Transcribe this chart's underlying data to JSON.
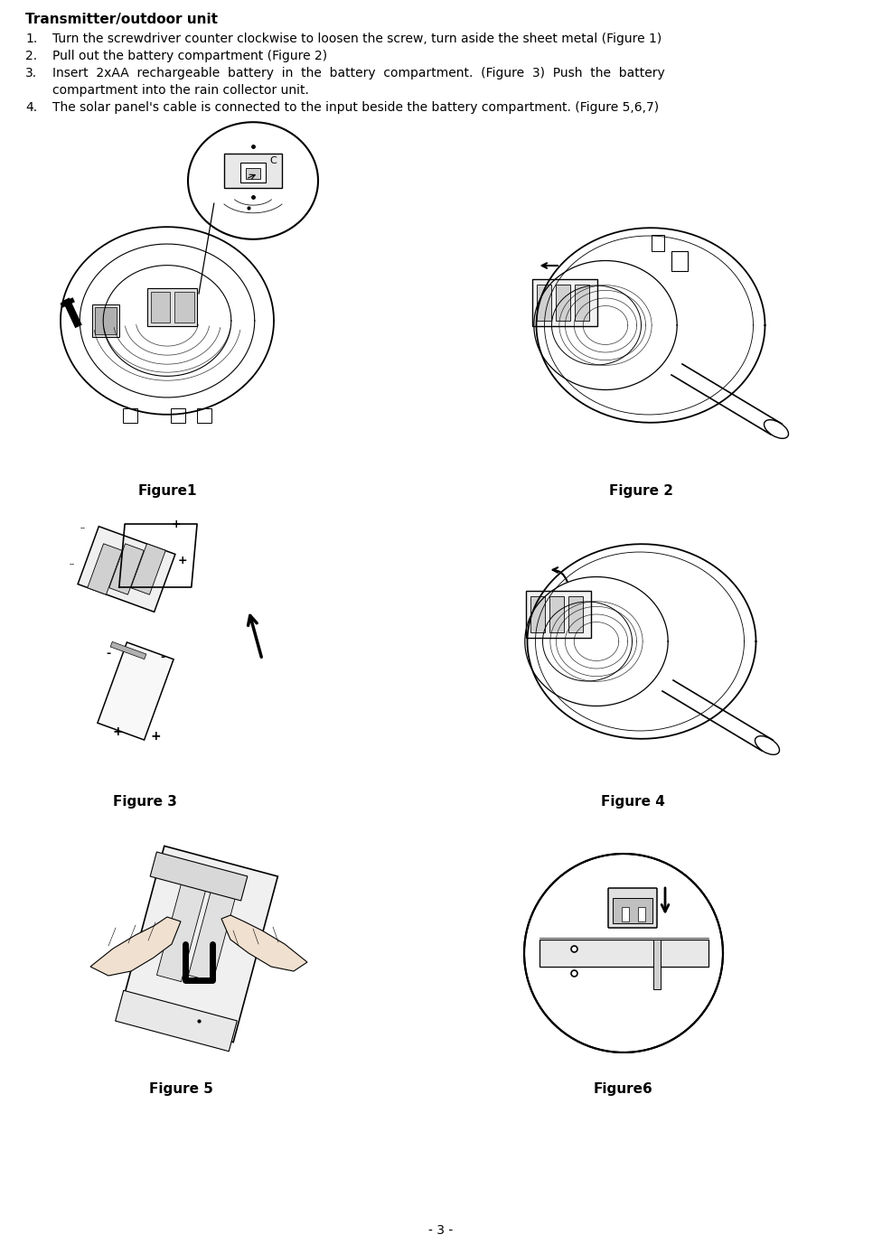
{
  "title": "Transmitter/outdoor unit",
  "line1": "Turn the screwdriver counter clockwise to loosen the screw, turn aside the sheet metal (Figure 1)",
  "line2": "Pull out the battery compartment (Figure 2)",
  "line3a": "Insert  2xAA  rechargeable  battery  in  the  battery  compartment.  (Figure  3)  Push  the  battery",
  "line3b": "compartment into the rain collector unit.",
  "line4": "The solar panel's cable is connected to the input beside the battery compartment. (Figure 5,6,7)",
  "figure_labels": [
    "Figure1",
    "Figure 2",
    "Figure 3",
    "Figure 4",
    "Figure 5",
    "Figure6"
  ],
  "page_number": "- 3 -",
  "bg_color": "#ffffff",
  "text_color": "#000000",
  "title_fontsize": 11,
  "body_fontsize": 10,
  "fig_label_fontsize": 11
}
